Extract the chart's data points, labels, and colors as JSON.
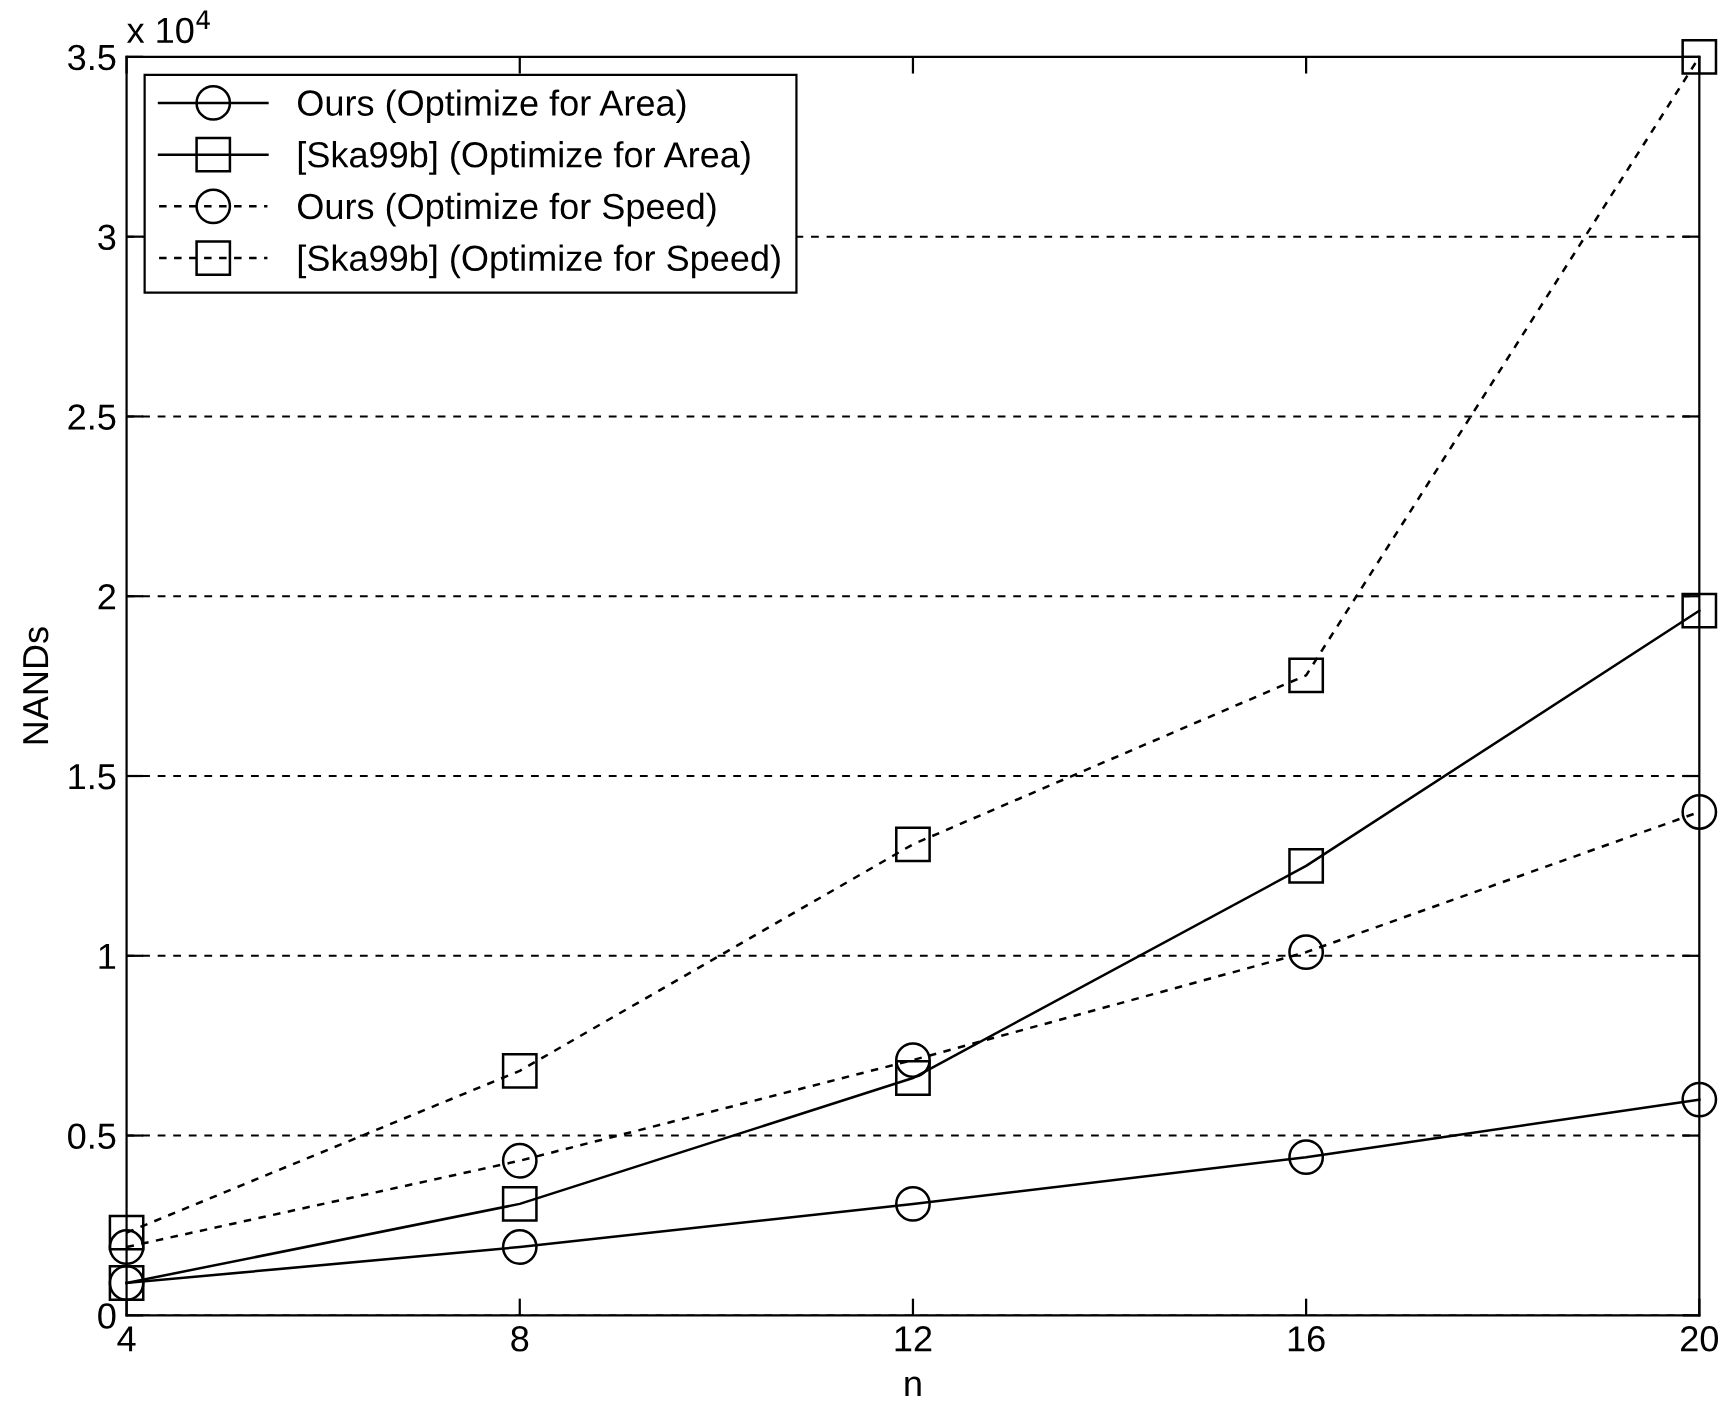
{
  "chart_data": {
    "type": "line",
    "xlabel": "n",
    "ylabel": "NANDs",
    "annotations": [
      "x 10$^{4}$"
    ],
    "x": [
      4,
      8,
      12,
      16,
      20
    ],
    "series": [
      {
        "name": "Ours (Optimize for Area)",
        "color": "#000000",
        "marker": "circle",
        "line_style": "solid",
        "values": [
          0.09,
          0.19,
          0.31,
          0.44,
          0.6
        ]
      },
      {
        "name": "[Ska99b] (Optimize for Area)",
        "color": "#000000",
        "marker": "square",
        "line_style": "solid",
        "values": [
          0.09,
          0.31,
          0.66,
          1.25,
          1.96
        ]
      },
      {
        "name": "Ours (Optimize for Speed)",
        "color": "#000000",
        "marker": "circle",
        "line_style": "dashed",
        "values": [
          0.19,
          0.43,
          0.71,
          1.01,
          1.4
        ]
      },
      {
        "name": "[Ska99b] (Optimize for Speed)",
        "color": "#000000",
        "marker": "square",
        "line_style": "dashed",
        "values": [
          0.23,
          0.68,
          1.31,
          1.78,
          3.5
        ]
      }
    ],
    "xlim": [
      4,
      20
    ],
    "xticks": [
      4,
      8,
      12,
      16,
      20
    ],
    "ylim": [
      0,
      3.5
    ],
    "yticks": [
      0,
      0.5,
      1,
      1.5,
      2,
      2.5,
      3,
      3.5
    ],
    "grid": "y",
    "legend": "top left"
  }
}
